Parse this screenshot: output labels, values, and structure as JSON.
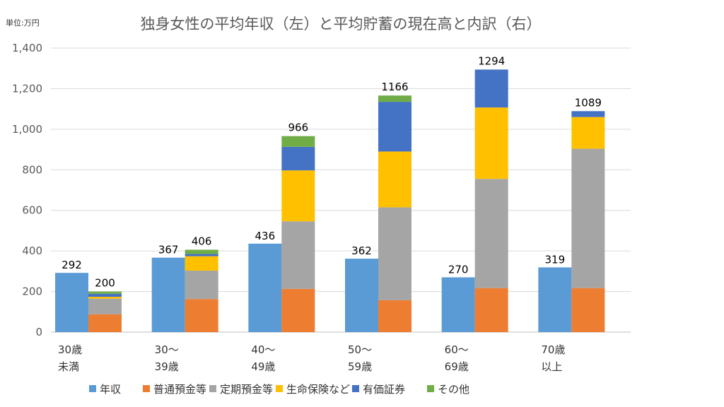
{
  "chart_data": {
    "type": "bar",
    "title": "独身女性の平均年収（左）と平均貯蓄の現在高と内訳（右）",
    "unit_label": "単位:万円",
    "ylim": [
      0,
      1400
    ],
    "yticks": [
      "0",
      "200",
      "400",
      "600",
      "800",
      "1,000",
      "1,200",
      "1,400"
    ],
    "grid": true,
    "legend_position": "bottom",
    "categories": [
      [
        "30歳",
        "未満"
      ],
      [
        "30～",
        "39歳"
      ],
      [
        "40～",
        "49歳"
      ],
      [
        "50～",
        "59歳"
      ],
      [
        "60～",
        "69歳"
      ],
      [
        "70歳",
        "以上"
      ]
    ],
    "income_series": {
      "name": "年収",
      "color": "#5b9bd5",
      "values": [
        292,
        367,
        436,
        362,
        270,
        319
      ]
    },
    "savings_series": [
      {
        "name": "普通預金等",
        "color": "#ed7d31",
        "values": [
          88,
          163,
          213,
          157,
          217,
          217
        ]
      },
      {
        "name": "定期預金等",
        "color": "#a5a5a5",
        "values": [
          77,
          140,
          333,
          458,
          538,
          687
        ]
      },
      {
        "name": "生命保険など",
        "color": "#ffc000",
        "values": [
          9,
          71,
          251,
          275,
          352,
          156
        ]
      },
      {
        "name": "有価証券",
        "color": "#4472c4",
        "values": [
          15,
          11,
          116,
          245,
          187,
          29
        ]
      },
      {
        "name": "その他",
        "color": "#70ad47",
        "values": [
          11,
          21,
          53,
          31,
          0,
          0
        ]
      }
    ],
    "savings_totals": [
      200,
      406,
      966,
      1166,
      1294,
      1089
    ]
  }
}
